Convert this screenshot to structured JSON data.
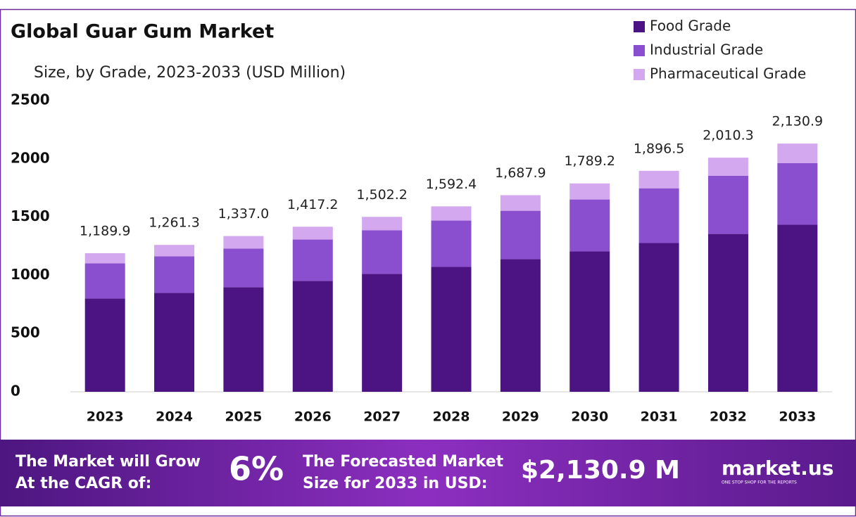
{
  "chart_data": {
    "type": "stacked_bar",
    "title": "Global Guar Gum Market",
    "subtitle": "Size, by Grade, 2023-2033 (USD Million)",
    "categories": [
      "2023",
      "2024",
      "2025",
      "2026",
      "2027",
      "2028",
      "2029",
      "2030",
      "2031",
      "2032",
      "2033"
    ],
    "series": [
      {
        "name": "Food Grade",
        "color": "#4b1482",
        "values": [
          801,
          849,
          898,
          952,
          1012,
          1072,
          1139,
          1205,
          1277,
          1355,
          1434
        ]
      },
      {
        "name": "Industrial Grade",
        "color": "#8a4fcf",
        "values": [
          301,
          314,
          331,
          355,
          374,
          398,
          415,
          446,
          470,
          500,
          530
        ]
      },
      {
        "name": "Pharmaceutical Grade",
        "color": "#d3a8ee",
        "values": [
          88,
          98,
          108,
          110,
          116,
          122,
          134,
          138,
          150,
          155,
          167
        ]
      }
    ],
    "totals": [
      1189.9,
      1261.3,
      1337.0,
      1417.2,
      1502.2,
      1592.4,
      1687.9,
      1789.2,
      1896.5,
      2010.3,
      2130.9
    ],
    "total_labels": [
      "1,189.9",
      "1,261.3",
      "1,337.0",
      "1,417.2",
      "1,502.2",
      "1,592.4",
      "1,687.9",
      "1,789.2",
      "1,896.5",
      "2,010.3",
      "2,130.9"
    ],
    "ylim": [
      0,
      2500
    ],
    "yticks": [
      0,
      500,
      1000,
      1500,
      2000,
      2500
    ],
    "grid": false,
    "legend": "top-right"
  },
  "footer": {
    "cagr_text": "The Market will Grow At the CAGR of:",
    "cagr_value": "6%",
    "forecast_text": "The Forecasted Market Size for 2033 in USD:",
    "forecast_value": "$2,130.9 M",
    "brand": "market.us",
    "tagline": "ONE STOP SHOP FOR THE REPORTS"
  }
}
